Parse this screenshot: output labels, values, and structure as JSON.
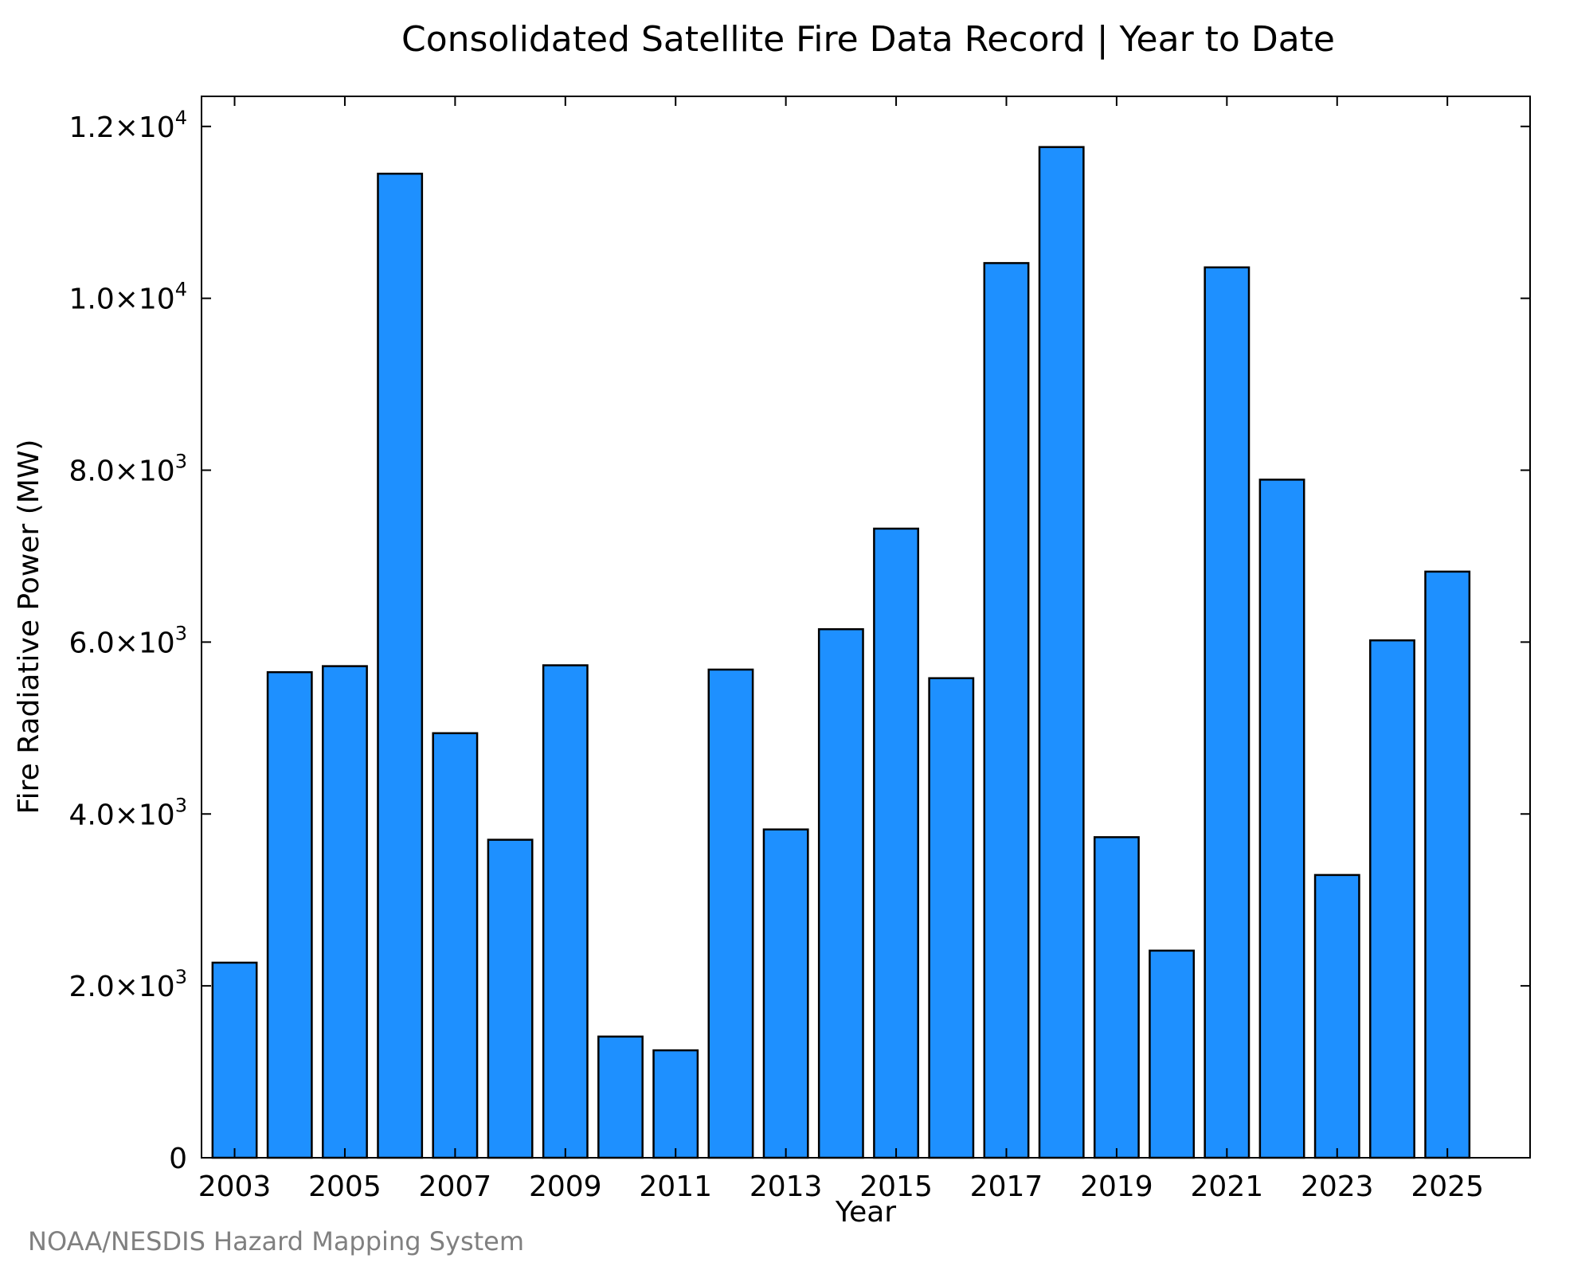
{
  "chart_data": {
    "type": "bar",
    "title": "Consolidated Satellite Fire Data Record | Year to Date",
    "xlabel": "Year",
    "ylabel": "Fire Radiative Power (MW)",
    "categories": [
      "2003",
      "2004",
      "2005",
      "2006",
      "2007",
      "2008",
      "2009",
      "2010",
      "2011",
      "2012",
      "2013",
      "2014",
      "2015",
      "2016",
      "2017",
      "2018",
      "2019",
      "2020",
      "2021",
      "2022",
      "2023",
      "2024",
      "2025"
    ],
    "values": [
      2270,
      5650,
      5720,
      11450,
      4940,
      3700,
      5730,
      1410,
      1250,
      5680,
      3820,
      6150,
      7320,
      5580,
      10410,
      11760,
      3730,
      2410,
      10360,
      7890,
      3290,
      6020,
      6820
    ],
    "x_tick_labels": [
      "2003",
      "2005",
      "2007",
      "2009",
      "2011",
      "2013",
      "2015",
      "2017",
      "2019",
      "2021",
      "2023",
      "2025"
    ],
    "y_ticks": [
      {
        "value": 0,
        "mantissa": "0",
        "exp": ""
      },
      {
        "value": 2000,
        "mantissa": "2.0×10",
        "exp": "3"
      },
      {
        "value": 4000,
        "mantissa": "4.0×10",
        "exp": "3"
      },
      {
        "value": 6000,
        "mantissa": "6.0×10",
        "exp": "3"
      },
      {
        "value": 8000,
        "mantissa": "8.0×10",
        "exp": "3"
      },
      {
        "value": 10000,
        "mantissa": "1.0×10",
        "exp": "4"
      },
      {
        "value": 12000,
        "mantissa": "1.2×10",
        "exp": "4"
      }
    ],
    "ylim": [
      0,
      12350
    ],
    "xlim": [
      2002.4,
      2026.5
    ],
    "grid": false,
    "bar_color": "#1e90ff",
    "bar_edge_color": "#000000"
  },
  "footer": "NOAA/NESDIS Hazard Mapping System"
}
